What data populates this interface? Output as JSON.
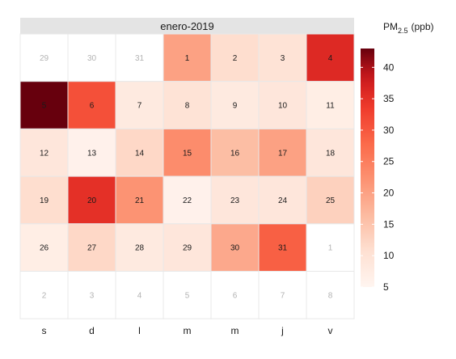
{
  "chart_data": {
    "type": "heatmap",
    "title": "enero-2019",
    "weekday_labels": [
      "s",
      "d",
      "l",
      "m",
      "m",
      "j",
      "v"
    ],
    "legend": {
      "title_main": "PM",
      "title_sub": "2.5",
      "title_unit": "(ppb)",
      "ticks": [
        "40",
        "35",
        "30",
        "25",
        "20",
        "15",
        "10",
        "5"
      ],
      "tick_values": [
        40,
        35,
        30,
        25,
        20,
        15,
        10,
        5
      ],
      "range": [
        5,
        43
      ],
      "placement": "right"
    },
    "colors": {
      "low": "#fff5f0",
      "high": "#67000d",
      "outside_day_text": "#b3b3b3",
      "strip_bg": "#e4e4e4",
      "cell_border": "#e8e8e8"
    },
    "rows": [
      [
        {
          "day": "29",
          "value": null
        },
        {
          "day": "30",
          "value": null
        },
        {
          "day": "31",
          "value": null
        },
        {
          "day": "1",
          "value": 20
        },
        {
          "day": "2",
          "value": 11
        },
        {
          "day": "3",
          "value": 10
        },
        {
          "day": "4",
          "value": 36
        }
      ],
      [
        {
          "day": "5",
          "value": 43
        },
        {
          "day": "6",
          "value": 31
        },
        {
          "day": "7",
          "value": 8
        },
        {
          "day": "8",
          "value": 10
        },
        {
          "day": "9",
          "value": 8
        },
        {
          "day": "10",
          "value": 9
        },
        {
          "day": "11",
          "value": 7
        }
      ],
      [
        {
          "day": "12",
          "value": 9
        },
        {
          "day": "13",
          "value": 6
        },
        {
          "day": "14",
          "value": 12
        },
        {
          "day": "15",
          "value": 23
        },
        {
          "day": "16",
          "value": 16
        },
        {
          "day": "17",
          "value": 20
        },
        {
          "day": "18",
          "value": 9
        }
      ],
      [
        {
          "day": "19",
          "value": 11
        },
        {
          "day": "20",
          "value": 35
        },
        {
          "day": "21",
          "value": 22
        },
        {
          "day": "22",
          "value": 6
        },
        {
          "day": "23",
          "value": 9
        },
        {
          "day": "24",
          "value": 9
        },
        {
          "day": "25",
          "value": 13
        }
      ],
      [
        {
          "day": "26",
          "value": 7
        },
        {
          "day": "27",
          "value": 12
        },
        {
          "day": "28",
          "value": 8
        },
        {
          "day": "29",
          "value": 9
        },
        {
          "day": "30",
          "value": 19
        },
        {
          "day": "31",
          "value": 29
        },
        {
          "day": "1",
          "value": null
        }
      ],
      [
        {
          "day": "2",
          "value": null
        },
        {
          "day": "3",
          "value": null
        },
        {
          "day": "4",
          "value": null
        },
        {
          "day": "5",
          "value": null
        },
        {
          "day": "6",
          "value": null
        },
        {
          "day": "7",
          "value": null
        },
        {
          "day": "8",
          "value": null
        }
      ]
    ]
  }
}
